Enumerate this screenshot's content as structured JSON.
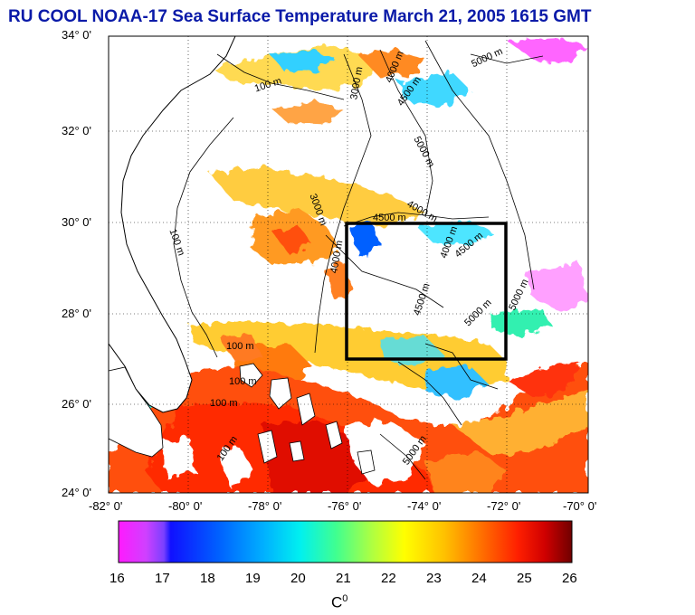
{
  "title": "RU COOL  NOAA-17 Sea Surface Temperature March 21, 2005 1615 GMT",
  "lat_labels": [
    "34° 0'",
    "32° 0'",
    "30° 0'",
    "28° 0'",
    "26° 0'",
    "24° 0'"
  ],
  "lon_labels": [
    "-82° 0'",
    "-80° 0'",
    "-78° 0'",
    "-76° 0'",
    "-74° 0'",
    "-72° 0'",
    "-70° 0'"
  ],
  "contour_labels": [
    "100 m",
    "100 m",
    "100 m",
    "100 m",
    "100 m",
    "100 m",
    "3000 m",
    "3000 m",
    "4000 m",
    "4500 m",
    "5000 m",
    "5000 m",
    "4000 m",
    "4500 m",
    "4000 m",
    "4500 m",
    "4500 m",
    "5000 m",
    "5000 m",
    "4000 m",
    "5000 m"
  ],
  "colorbar": {
    "ticks": [
      "16",
      "17",
      "18",
      "19",
      "20",
      "21",
      "22",
      "23",
      "24",
      "25",
      "26"
    ],
    "unit": "C",
    "unit_sup": "0",
    "range": [
      16,
      26
    ]
  },
  "colors": {
    "title": "#0a1aa8",
    "land": "#ffffff",
    "box": "#000000"
  }
}
